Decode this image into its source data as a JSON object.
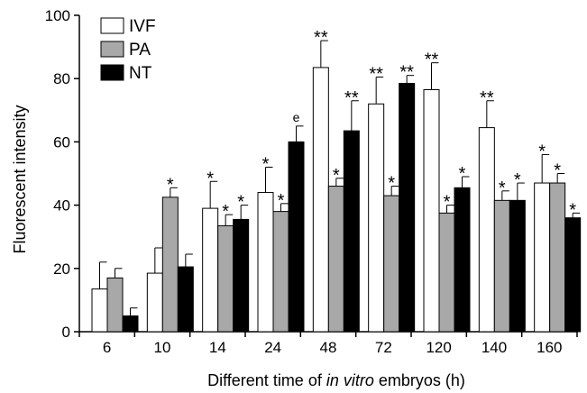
{
  "chart_data": {
    "type": "bar",
    "title": "",
    "xlabel_prefix": "Different time of ",
    "xlabel_italic": "in vitro",
    "xlabel_suffix": " embryos (h)",
    "ylabel": "Fluorescent intensity",
    "ylim": [
      0,
      100
    ],
    "yticks": [
      0,
      20,
      40,
      60,
      80,
      100
    ],
    "categories": [
      "6",
      "10",
      "14",
      "24",
      "48",
      "72",
      "120",
      "140",
      "160"
    ],
    "legend_position": "top-left",
    "series": [
      {
        "name": "IVF",
        "color": "#ffffff",
        "values": [
          13.5,
          18.5,
          39,
          44,
          83.5,
          72,
          76.5,
          64.5,
          47
        ],
        "errors": [
          8.5,
          8,
          8.5,
          8,
          8.5,
          8.5,
          8.5,
          8.5,
          9
        ],
        "annotations": [
          "",
          "",
          "*",
          "*",
          "**",
          "**",
          "**",
          "**",
          "*"
        ]
      },
      {
        "name": "PA",
        "color": "#a8a8a8",
        "values": [
          17,
          42.5,
          33.5,
          38,
          46,
          43,
          37.5,
          41.5,
          47
        ],
        "errors": [
          3,
          3,
          3.5,
          2.5,
          2.5,
          3,
          2.5,
          3,
          3
        ],
        "annotations": [
          "",
          "*",
          "*",
          "*",
          "*",
          "*",
          "*",
          "*",
          "*"
        ]
      },
      {
        "name": "NT",
        "color": "#000000",
        "values": [
          5,
          20.5,
          35.5,
          60,
          63.5,
          78.5,
          45.5,
          41.5,
          36
        ],
        "errors": [
          2.5,
          4,
          4.5,
          5,
          9.5,
          2.5,
          3.5,
          5.5,
          1.5
        ],
        "annotations": [
          "",
          "",
          "*",
          "e",
          "**",
          "**",
          "*",
          "*",
          "*"
        ]
      }
    ]
  }
}
